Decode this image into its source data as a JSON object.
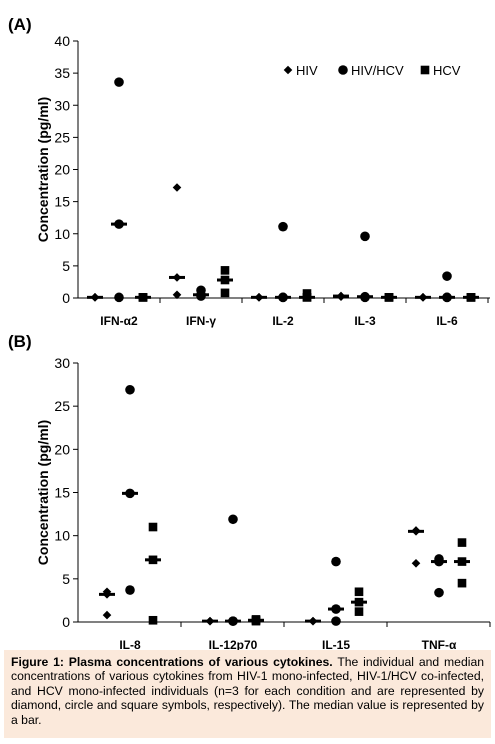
{
  "chart_data": [
    {
      "type": "scatter",
      "panel_label": "(A)",
      "ylabel": "Concentration (pg/ml)",
      "ylim": [
        0,
        40
      ],
      "yticks": [
        0,
        5,
        10,
        15,
        20,
        25,
        30,
        35,
        40
      ],
      "categories": [
        "IFN-α2",
        "IFN-γ",
        "IL-2",
        "IL-3",
        "IL-6"
      ],
      "legend": {
        "placement": "top-right",
        "items": [
          {
            "name": "HIV",
            "marker": "diamond"
          },
          {
            "name": "HIV/HCV",
            "marker": "circle"
          },
          {
            "name": "HCV",
            "marker": "square"
          }
        ]
      },
      "series": [
        {
          "name": "HIV",
          "marker": "diamond",
          "points": [
            [
              0.1,
              0.1,
              0.1
            ],
            [
              17.2,
              3.2,
              0.5
            ],
            [
              0.1,
              0.1,
              0.1
            ],
            [
              0.3,
              0.3,
              0.2
            ],
            [
              0.1,
              0.1,
              0.1
            ]
          ],
          "median": [
            0.1,
            3.2,
            0.1,
            0.3,
            0.1
          ]
        },
        {
          "name": "HIV/HCV",
          "marker": "circle",
          "points": [
            [
              33.6,
              11.5,
              0.1
            ],
            [
              1.2,
              0.5,
              0.3
            ],
            [
              11.1,
              0.1,
              0.1
            ],
            [
              9.6,
              0.2,
              0.1
            ],
            [
              3.4,
              0.1,
              0.1
            ]
          ],
          "median": [
            11.5,
            0.5,
            0.1,
            0.2,
            0.1
          ]
        },
        {
          "name": "HCV",
          "marker": "square",
          "points": [
            [
              0.1,
              0.1,
              0.1
            ],
            [
              4.3,
              2.8,
              0.8
            ],
            [
              0.7,
              0.1,
              0.1
            ],
            [
              0.1,
              0.1,
              0.1
            ],
            [
              0.1,
              0.1,
              0.1
            ]
          ],
          "median": [
            0.1,
            2.8,
            0.1,
            0.1,
            0.1
          ]
        }
      ]
    },
    {
      "type": "scatter",
      "panel_label": "(B)",
      "ylabel": "Concentration (pg/ml)",
      "ylim": [
        0,
        30
      ],
      "yticks": [
        0,
        5,
        10,
        15,
        20,
        25,
        30
      ],
      "categories": [
        "IL-8",
        "IL-12p70",
        "IL-15",
        "TNF-α"
      ],
      "series": [
        {
          "name": "HIV",
          "marker": "diamond",
          "points": [
            [
              3.5,
              3.2,
              0.8
            ],
            [
              0.1,
              0.1,
              0.1
            ],
            [
              0.1,
              0.1,
              0.1
            ],
            [
              10.6,
              10.5,
              6.8
            ]
          ],
          "median": [
            3.2,
            0.1,
            0.1,
            10.5
          ]
        },
        {
          "name": "HIV/HCV",
          "marker": "circle",
          "points": [
            [
              26.9,
              14.9,
              3.7
            ],
            [
              11.9,
              0.1,
              0.1
            ],
            [
              7.0,
              1.5,
              0.1
            ],
            [
              7.3,
              7.0,
              3.4
            ]
          ],
          "median": [
            14.9,
            0.1,
            1.5,
            7.0
          ]
        },
        {
          "name": "HCV",
          "marker": "square",
          "points": [
            [
              11.0,
              7.2,
              0.2
            ],
            [
              0.3,
              0.2,
              0.1
            ],
            [
              3.5,
              2.3,
              1.2
            ],
            [
              9.2,
              7.0,
              4.5
            ]
          ],
          "median": [
            7.2,
            0.2,
            2.3,
            7.0
          ]
        }
      ]
    }
  ],
  "caption": {
    "title": "Figure 1: Plasma concentrations of various cytokines.",
    "body": " The individual and median concentrations of various cytokines from HIV-1 mono-infected, HIV-1/HCV co-infected, and HCV mono-infected individuals (n=3 for each condition and are represented by diamond, circle and square symbols, respectively). The median value is represented by a bar."
  }
}
